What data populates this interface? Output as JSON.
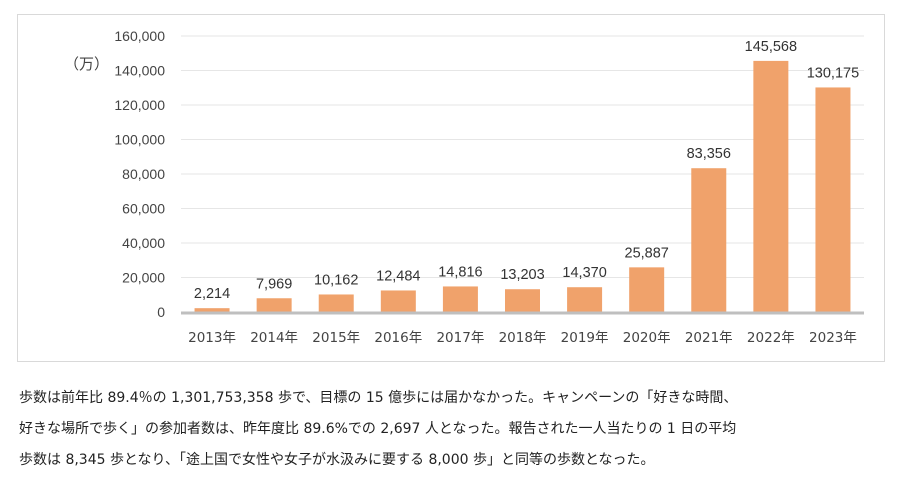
{
  "chart_data": {
    "type": "bar",
    "unit_label": "（万）",
    "categories": [
      "2013年",
      "2014年",
      "2015年",
      "2016年",
      "2017年",
      "2018年",
      "2019年",
      "2020年",
      "2021年",
      "2022年",
      "2023年"
    ],
    "values": [
      2214,
      7969,
      10162,
      12484,
      14816,
      13203,
      14370,
      25887,
      83356,
      145568,
      130175
    ],
    "value_labels": [
      "2,214",
      "7,969",
      "10,162",
      "12,484",
      "14,816",
      "13,203",
      "14,370",
      "25,887",
      "83,356",
      "145,568",
      "130,175"
    ],
    "y_ticks": [
      0,
      20000,
      40000,
      60000,
      80000,
      100000,
      120000,
      140000,
      160000
    ],
    "y_tick_labels": [
      "0",
      "20,000",
      "40,000",
      "60,000",
      "80,000",
      "100,000",
      "120,000",
      "140,000",
      "160,000"
    ],
    "ylim": [
      0,
      160000
    ],
    "grid": true,
    "bar_color": "#f0a26b",
    "axis_color": "#bfbfbf"
  },
  "caption": {
    "lines": [
      "歩数は前年比 89.4％の 1,301,753,358 歩で、目標の 15 億歩には届かなかった。キャンペーンの「好きな時間、",
      "好きな場所で歩く」の参加者数は、昨年度比 89.6%での 2,697 人となった。報告された一人当たりの 1 日の平均",
      "歩数は 8,345 歩となり、「途上国で女性や女子が水汲みに要する 8,000 歩」と同等の歩数となった。"
    ]
  }
}
